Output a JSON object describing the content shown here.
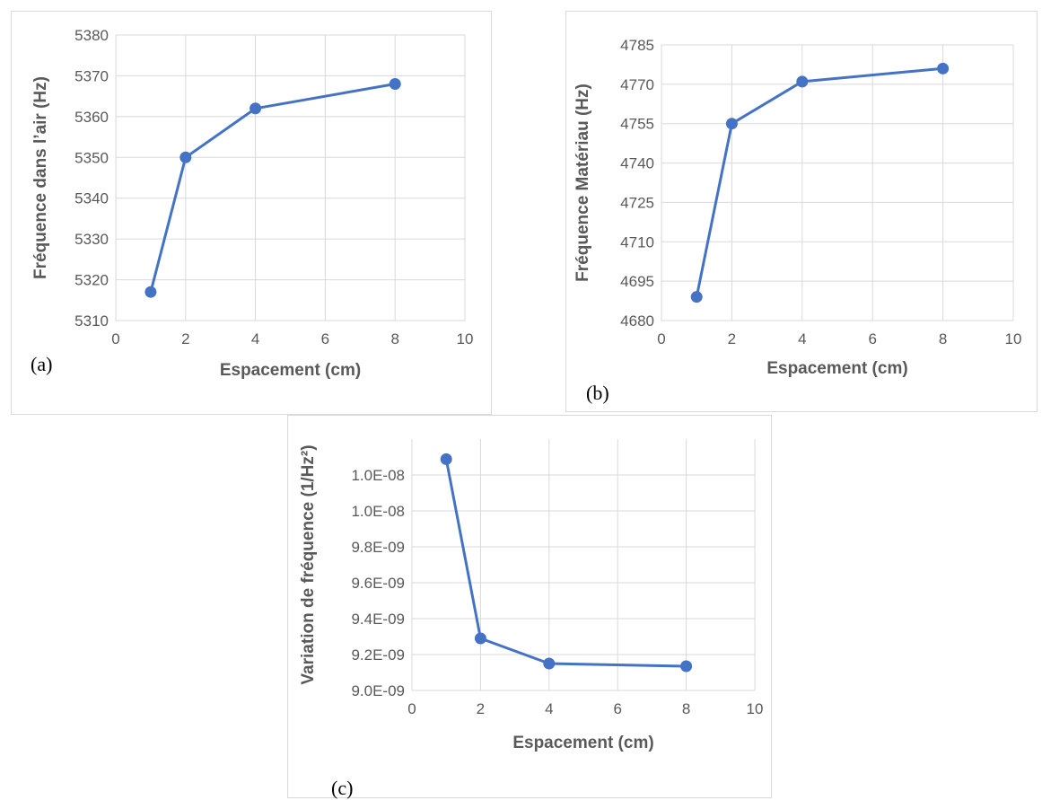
{
  "chart_data": [
    {
      "type": "line",
      "panel_label": "(a)",
      "xlabel": "Espacement (cm)",
      "ylabel": "Fréquence dans l’air (Hz)",
      "xlim": [
        0,
        10
      ],
      "ylim": [
        5310,
        5380
      ],
      "x_ticks": [
        0,
        2,
        4,
        6,
        8,
        10
      ],
      "x_tick_labels": [
        "0",
        "2",
        "4",
        "6",
        "8",
        "10"
      ],
      "y_ticks": [
        5310,
        5320,
        5330,
        5340,
        5350,
        5360,
        5370,
        5380
      ],
      "y_tick_labels": [
        "5310",
        "5320",
        "5330",
        "5340",
        "5350",
        "5360",
        "5370",
        "5380"
      ],
      "grid": true,
      "color": "#4472c4",
      "series": [
        {
          "x": [
            1,
            2,
            4,
            8
          ],
          "y": [
            5317,
            5350,
            5362,
            5368
          ]
        }
      ]
    },
    {
      "type": "line",
      "panel_label": "(b)",
      "xlabel": "Espacement (cm)",
      "ylabel": "Fréquence Matériau (Hz)",
      "xlim": [
        0,
        10
      ],
      "ylim": [
        4680,
        4785
      ],
      "x_ticks": [
        0,
        2,
        4,
        6,
        8,
        10
      ],
      "x_tick_labels": [
        "0",
        "2",
        "4",
        "6",
        "8",
        "10"
      ],
      "y_ticks": [
        4680,
        4695,
        4710,
        4725,
        4740,
        4755,
        4770,
        4785
      ],
      "y_tick_labels": [
        "4680",
        "4695",
        "4710",
        "4725",
        "4740",
        "4755",
        "4770",
        "4785"
      ],
      "grid": true,
      "color": "#4472c4",
      "series": [
        {
          "x": [
            1,
            2,
            4,
            8
          ],
          "y": [
            4689,
            4755,
            4771,
            4776
          ]
        }
      ]
    },
    {
      "type": "line",
      "panel_label": "(c)",
      "xlabel": "Espacement (cm)",
      "ylabel": "Variation de fréquence (1/Hz²)",
      "xlim": [
        0,
        10
      ],
      "ylim": [
        9e-09,
        1.04e-08
      ],
      "x_ticks": [
        0,
        2,
        4,
        6,
        8,
        10
      ],
      "x_tick_labels": [
        "0",
        "2",
        "4",
        "6",
        "8",
        "10"
      ],
      "y_ticks": [
        9e-09,
        9.2e-09,
        9.4e-09,
        9.6e-09,
        9.8e-09,
        1e-08,
        1.02e-08
      ],
      "y_tick_labels": [
        "9.0E-09",
        "9.2E-09",
        "9.4E-09",
        "9.6E-09",
        "9.8E-09",
        "1.0E-08",
        "1.0E-08"
      ],
      "grid": true,
      "color": "#4472c4",
      "series": [
        {
          "x": [
            1,
            2,
            4,
            8
          ],
          "y": [
            1.0288e-08,
            9.29e-09,
            9.15e-09,
            9.135e-09
          ]
        }
      ]
    }
  ]
}
